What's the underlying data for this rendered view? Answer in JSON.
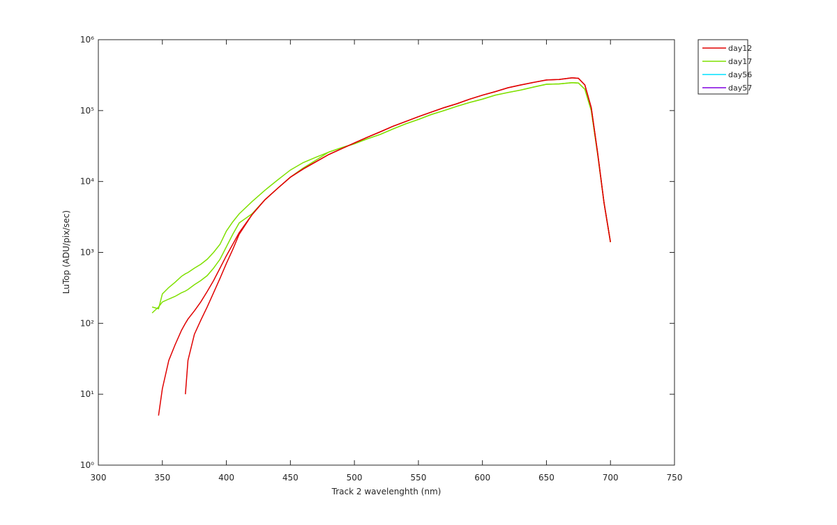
{
  "chart_data": {
    "type": "line",
    "xlabel": "Track 2 wavelenghth (nm)",
    "ylabel": "LuTop (ADU/pix/sec)",
    "log_y": true,
    "legend_position": "outside-top-right",
    "xlim": [
      300,
      750
    ],
    "xticks": [
      300,
      350,
      400,
      450,
      500,
      550,
      600,
      650,
      700,
      750
    ],
    "ylim": [
      1,
      1000000
    ],
    "yticks": [
      {
        "value": 1,
        "label": "10⁰"
      },
      {
        "value": 10,
        "label": "10¹"
      },
      {
        "value": 100,
        "label": "10²"
      },
      {
        "value": 1000,
        "label": "10³"
      },
      {
        "value": 10000,
        "label": "10⁴"
      },
      {
        "value": 100000,
        "label": "10⁵"
      },
      {
        "value": 1000000,
        "label": "10⁶"
      }
    ],
    "x": [
      342,
      347,
      350,
      355,
      360,
      365,
      368,
      370,
      375,
      380,
      385,
      390,
      395,
      400,
      405,
      410,
      420,
      430,
      440,
      450,
      460,
      470,
      480,
      490,
      500,
      510,
      520,
      530,
      540,
      550,
      560,
      570,
      580,
      590,
      600,
      610,
      620,
      630,
      640,
      650,
      660,
      670,
      675,
      680,
      685,
      690,
      695,
      700
    ],
    "series": [
      {
        "name": "day12",
        "color": "#e00000",
        "legend_color": "#e00000",
        "values": [
          null,
          5,
          12,
          30,
          50,
          80,
          100,
          115,
          150,
          200,
          280,
          400,
          600,
          900,
          1300,
          1900,
          3400,
          5500,
          8000,
          11500,
          15000,
          19000,
          24000,
          29000,
          35000,
          42000,
          50000,
          60000,
          70000,
          82000,
          95000,
          110000,
          125000,
          145000,
          165000,
          185000,
          210000,
          230000,
          250000,
          270000,
          275000,
          290000,
          285000,
          230000,
          110000,
          25000,
          5000,
          1400
        ]
      },
      {
        "name": "day17",
        "color": "#7fe000",
        "legend_color": "#7fe000",
        "values": [
          170,
          160,
          260,
          320,
          380,
          460,
          500,
          520,
          600,
          680,
          800,
          1000,
          1300,
          2000,
          2700,
          3500,
          5200,
          7500,
          10500,
          14500,
          18500,
          22000,
          26000,
          30000,
          34000,
          40000,
          46000,
          55000,
          65000,
          75000,
          88000,
          100000,
          115000,
          130000,
          145000,
          165000,
          180000,
          195000,
          215000,
          235000,
          238000,
          248000,
          245000,
          200000,
          100000,
          24000,
          5000,
          1400
        ]
      },
      {
        "name": "day56",
        "color": "#e00000",
        "legend_color": "#00e0ff",
        "values": [
          null,
          null,
          null,
          null,
          null,
          null,
          10,
          30,
          70,
          110,
          170,
          270,
          430,
          700,
          1100,
          1800,
          3400,
          5500,
          8000,
          11500,
          15000,
          19000,
          24000,
          29000,
          35000,
          42000,
          50000,
          60000,
          70000,
          82000,
          95000,
          110000,
          125000,
          145000,
          165000,
          185000,
          210000,
          230000,
          250000,
          270000,
          275000,
          290000,
          285000,
          230000,
          110000,
          25000,
          5000,
          1400
        ]
      },
      {
        "name": "day57",
        "color": "#7fe000",
        "legend_color": "#8000e0",
        "values": [
          140,
          170,
          200,
          220,
          240,
          270,
          285,
          300,
          350,
          400,
          470,
          600,
          800,
          1200,
          1800,
          2600,
          3500,
          5500,
          8000,
          11500,
          15500,
          20000,
          26000,
          30000,
          34000,
          40000,
          46000,
          55000,
          65000,
          75000,
          88000,
          100000,
          115000,
          130000,
          145000,
          165000,
          180000,
          195000,
          215000,
          235000,
          238000,
          248000,
          245000,
          200000,
          100000,
          24000,
          5000,
          1400
        ]
      }
    ]
  }
}
